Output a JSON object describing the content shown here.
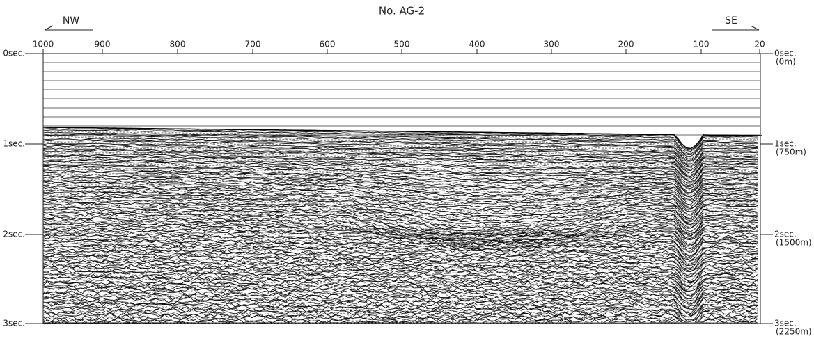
{
  "title": "No. AG-2",
  "direction_left": "NW",
  "direction_right": "SE",
  "shot_points": [
    1000,
    900,
    800,
    700,
    600,
    500,
    400,
    300,
    200,
    100,
    20
  ],
  "time_labels_left": [
    "0sec.",
    "1sec.",
    "2sec.",
    "3sec."
  ],
  "time_labels_right": [
    {
      "time": "0sec.",
      "depth": "(0m)"
    },
    {
      "time": "1sec.",
      "depth": "(750m)"
    },
    {
      "time": "2sec.",
      "depth": "(1500m)"
    },
    {
      "time": "3sec.",
      "depth": "(2250m)"
    }
  ]
}
